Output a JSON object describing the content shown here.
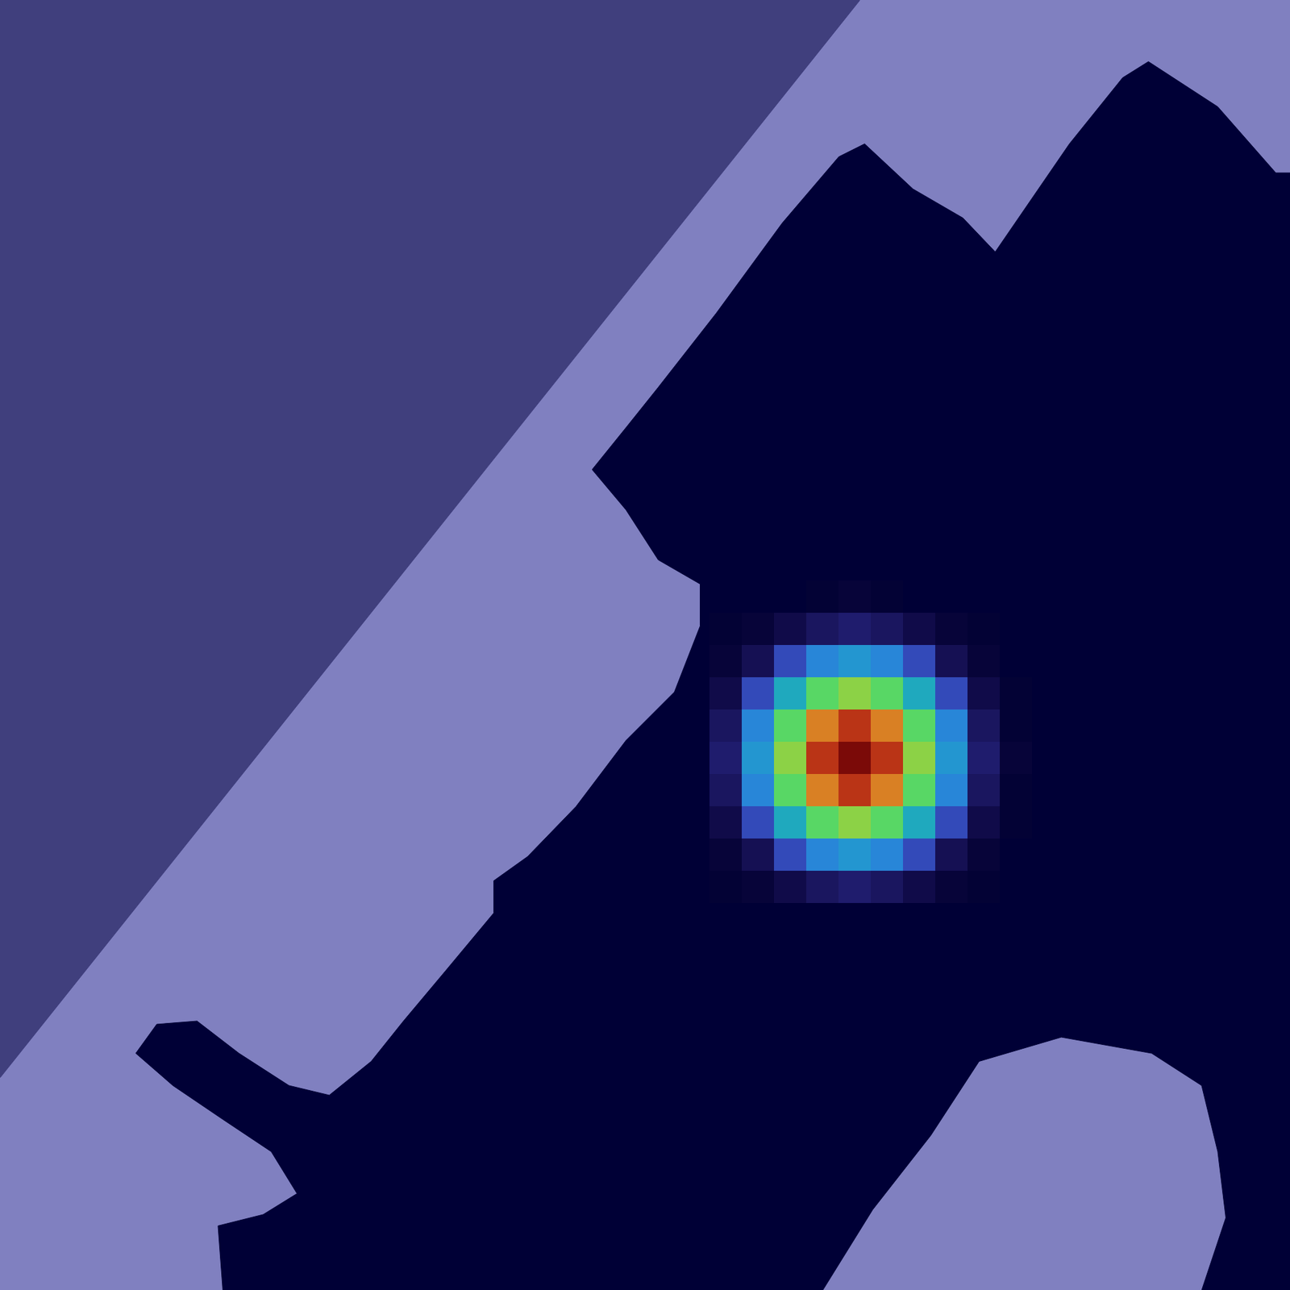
{
  "chart_data": {
    "type": "heatmap",
    "tick_labels": false,
    "xlim": [
      0,
      80
    ],
    "ylim": [
      0,
      80
    ],
    "regions": [
      {
        "color": "#8080c0",
        "points": [
          [
            0,
            0
          ],
          [
            80,
            0
          ],
          [
            80,
            80
          ],
          [
            0,
            80
          ]
        ]
      },
      {
        "color": "#000036",
        "points": [
          [
            80,
            10.7
          ],
          [
            79.1,
            10.7
          ],
          [
            75.5,
            6.6
          ],
          [
            71.2,
            3.8
          ],
          [
            69.6,
            4.8
          ],
          [
            66.3,
            8.9
          ],
          [
            61.7,
            15.6
          ],
          [
            59.7,
            13.5
          ],
          [
            56.6,
            11.7
          ],
          [
            53.6,
            8.9
          ],
          [
            52.0,
            9.7
          ],
          [
            48.5,
            13.8
          ],
          [
            44.4,
            19.4
          ],
          [
            40.8,
            24.0
          ],
          [
            38.8,
            26.5
          ],
          [
            36.7,
            29.1
          ],
          [
            38.8,
            31.6
          ],
          [
            40.8,
            34.7
          ],
          [
            43.4,
            36.2
          ],
          [
            43.4,
            38.8
          ],
          [
            41.8,
            42.9
          ],
          [
            38.8,
            45.9
          ],
          [
            35.7,
            50.0
          ],
          [
            32.7,
            53.1
          ],
          [
            30.6,
            54.6
          ],
          [
            30.6,
            56.6
          ],
          [
            27.6,
            60.2
          ],
          [
            25.0,
            63.3
          ],
          [
            23.0,
            65.8
          ],
          [
            20.4,
            67.9
          ],
          [
            17.9,
            67.3
          ],
          [
            14.8,
            65.3
          ],
          [
            12.2,
            63.3
          ],
          [
            9.7,
            63.5
          ],
          [
            8.4,
            65.3
          ],
          [
            10.7,
            67.3
          ],
          [
            13.8,
            69.4
          ],
          [
            16.8,
            71.4
          ],
          [
            18.4,
            74.0
          ],
          [
            16.3,
            75.3
          ],
          [
            13.5,
            76.0
          ],
          [
            13.8,
            80
          ],
          [
            51.0,
            80
          ],
          [
            54.1,
            75.0
          ],
          [
            57.7,
            70.4
          ],
          [
            60.7,
            65.8
          ],
          [
            65.8,
            64.3
          ],
          [
            71.4,
            65.3
          ],
          [
            74.5,
            67.3
          ],
          [
            75.5,
            71.4
          ],
          [
            76.0,
            75.5
          ],
          [
            74.5,
            80
          ],
          [
            80,
            80
          ]
        ]
      },
      {
        "color": "#403f7d",
        "points": [
          [
            0,
            0
          ],
          [
            53.3,
            0
          ],
          [
            0,
            66.8
          ]
        ]
      }
    ],
    "cells": {
      "x_edges": [
        44,
        46,
        48,
        50,
        52,
        54,
        56,
        58,
        60,
        62,
        64
      ],
      "y_edges": [
        36,
        38,
        40,
        42,
        44,
        46,
        48,
        50,
        52,
        54,
        56
      ],
      "values": [
        [
          0,
          0,
          0,
          0.01,
          0.02,
          0.01,
          0,
          0,
          0,
          0
        ],
        [
          0.01,
          0.02,
          0.04,
          0.06,
          0.07,
          0.06,
          0.04,
          0.02,
          0.01,
          0
        ],
        [
          0.02,
          0.05,
          0.12,
          0.2,
          0.23,
          0.2,
          0.12,
          0.05,
          0.02,
          0
        ],
        [
          0.04,
          0.12,
          0.27,
          0.44,
          0.52,
          0.44,
          0.27,
          0.12,
          0.04,
          0.01
        ],
        [
          0.06,
          0.2,
          0.44,
          0.72,
          0.85,
          0.72,
          0.44,
          0.2,
          0.06,
          0.01
        ],
        [
          0.07,
          0.23,
          0.52,
          0.85,
          1,
          0.85,
          0.52,
          0.23,
          0.07,
          0.02
        ],
        [
          0.06,
          0.2,
          0.44,
          0.72,
          0.85,
          0.72,
          0.44,
          0.2,
          0.06,
          0.01
        ],
        [
          0.04,
          0.12,
          0.27,
          0.44,
          0.52,
          0.44,
          0.27,
          0.12,
          0.04,
          0.01
        ],
        [
          0.02,
          0.05,
          0.12,
          0.2,
          0.23,
          0.2,
          0.12,
          0.05,
          0.02,
          0
        ],
        [
          0.01,
          0.02,
          0.04,
          0.06,
          0.07,
          0.06,
          0.04,
          0.02,
          0.01,
          0
        ]
      ]
    }
  }
}
